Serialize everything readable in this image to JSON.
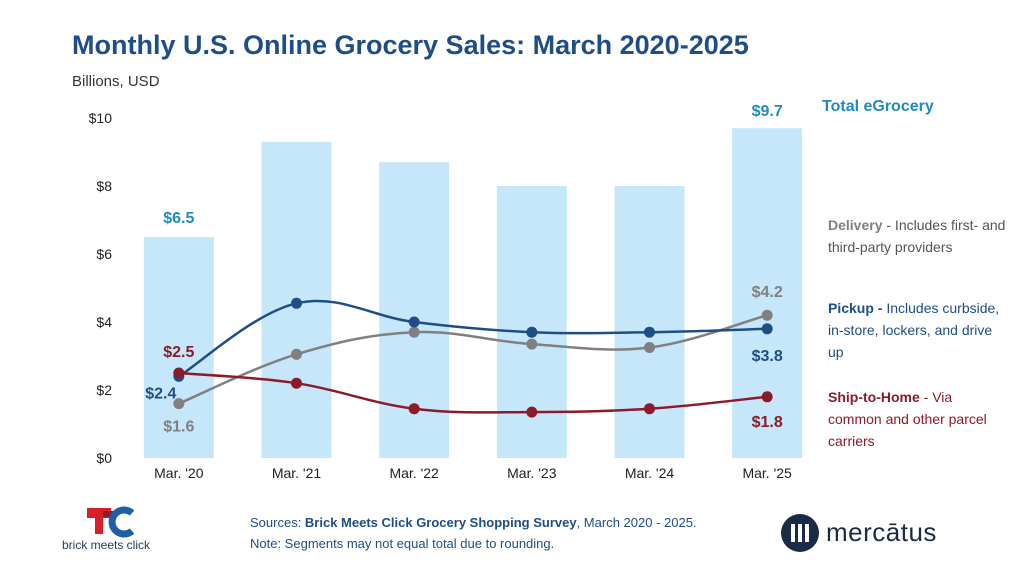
{
  "title": "Monthly U.S. Online Grocery Sales: March 2020-2025",
  "subtitle": "Billions, USD",
  "legend": {
    "total_label": "Total eGrocery",
    "delivery_name": "Delivery",
    "delivery_desc": " - Includes first- and third-party providers",
    "pickup_name": "Pickup -",
    "pickup_desc": " Includes curbside, in-store, lockers, and drive up",
    "ship_name": "Ship-to-Home",
    "ship_desc": " - Via common and other parcel carriers"
  },
  "footer": {
    "sources_prefix": "Sources: ",
    "sources_bold": "Brick Meets Click Grocery Shopping Survey",
    "sources_suffix": ", March 2020 - 2025.",
    "note": "Note: Segments may not equal total due to rounding."
  },
  "logos": {
    "bmc": "brick meets click",
    "mercatus": "mercātus"
  },
  "colors": {
    "bar": "#c6e7f9",
    "total": "#1e8bc3",
    "delivery": "#808080",
    "pickup": "#1f4e86",
    "ship": "#8b1a2b",
    "title": "#1f4e86"
  },
  "chart_data": {
    "type": "bar",
    "title": "Monthly U.S. Online Grocery Sales: March 2020-2025",
    "ylabel": "Billions, USD",
    "categories": [
      "Mar. '20",
      "Mar. '21",
      "Mar. '22",
      "Mar. '23",
      "Mar. '24",
      "Mar. '25"
    ],
    "ylim": [
      0,
      10
    ],
    "yticks": [
      "$0",
      "$2",
      "$4",
      "$6",
      "$8",
      "$10"
    ],
    "grid": false,
    "legend_position": "right",
    "series": [
      {
        "name": "Total eGrocery",
        "type": "bar",
        "values": [
          6.5,
          9.3,
          8.7,
          8.0,
          8.0,
          9.7
        ]
      },
      {
        "name": "Delivery",
        "type": "line",
        "values": [
          1.6,
          3.05,
          3.7,
          3.35,
          3.25,
          4.2
        ]
      },
      {
        "name": "Pickup",
        "type": "line",
        "values": [
          2.4,
          4.55,
          4.0,
          3.7,
          3.7,
          3.8
        ]
      },
      {
        "name": "Ship-to-Home",
        "type": "line",
        "values": [
          2.5,
          2.2,
          1.45,
          1.35,
          1.45,
          1.8
        ]
      }
    ],
    "annotations": {
      "total_first": "$6.5",
      "total_last": "$9.7",
      "pickup_first": "$2.4",
      "pickup_last": "$3.8",
      "delivery_first": "$1.6",
      "delivery_last": "$4.2",
      "ship_first": "$2.5",
      "ship_last": "$1.8"
    }
  }
}
